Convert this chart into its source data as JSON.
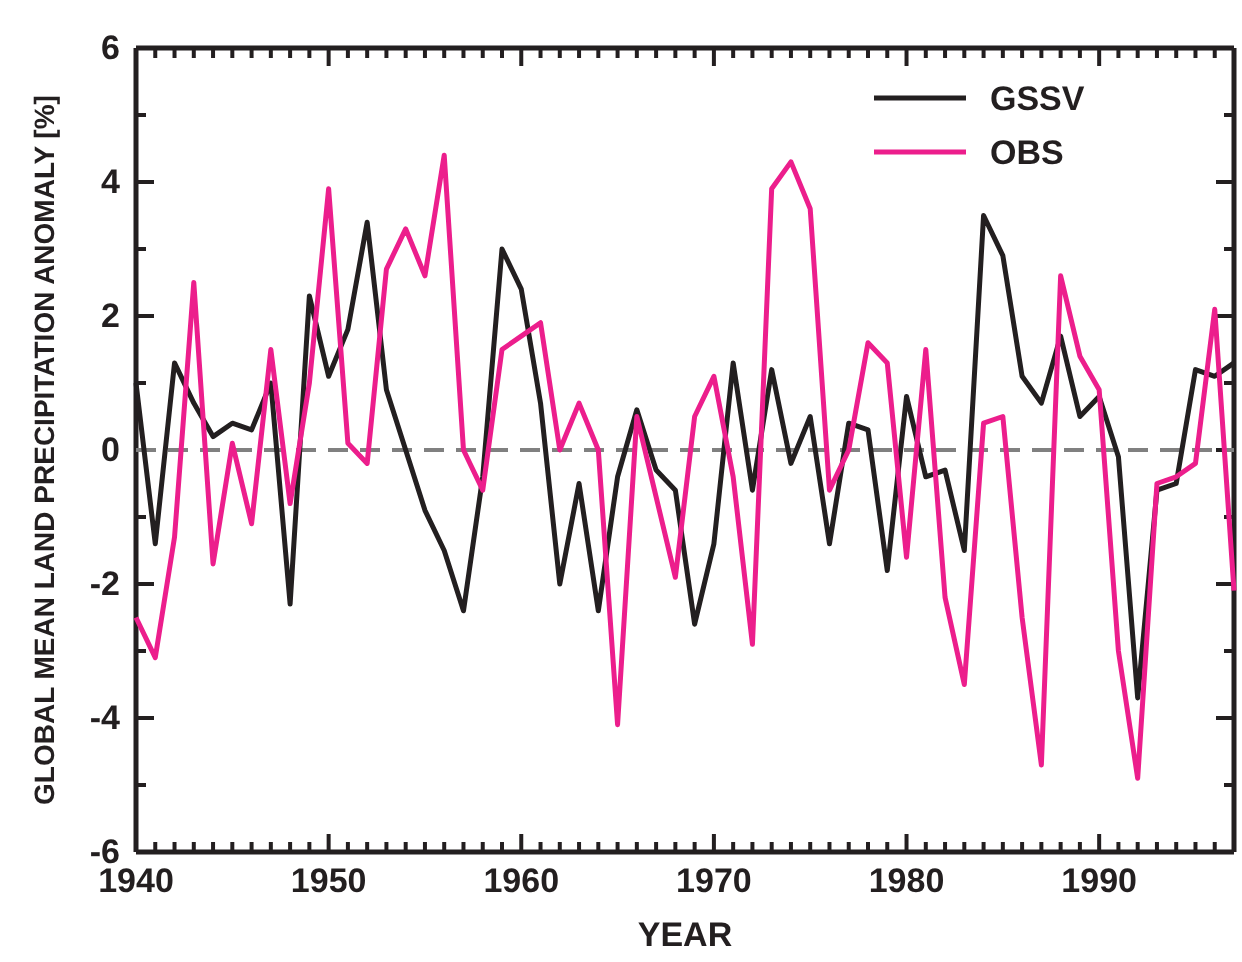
{
  "chart_data": {
    "type": "line",
    "xlabel": "YEAR",
    "ylabel": "GLOBAL MEAN LAND PRECIPITATION ANOMALY [%]",
    "x": [
      1940,
      1941,
      1942,
      1943,
      1944,
      1945,
      1946,
      1947,
      1948,
      1949,
      1950,
      1951,
      1952,
      1953,
      1954,
      1955,
      1956,
      1957,
      1958,
      1959,
      1960,
      1961,
      1962,
      1963,
      1964,
      1965,
      1966,
      1967,
      1968,
      1969,
      1970,
      1971,
      1972,
      1973,
      1974,
      1975,
      1976,
      1977,
      1978,
      1979,
      1980,
      1981,
      1982,
      1983,
      1984,
      1985,
      1986,
      1987,
      1988,
      1989,
      1990,
      1991,
      1992,
      1993,
      1994,
      1995,
      1996,
      1997
    ],
    "series": [
      {
        "name": "GSSV",
        "color": "#231f20",
        "values": [
          1.0,
          -1.4,
          1.3,
          0.7,
          0.2,
          0.4,
          0.3,
          1.0,
          -2.3,
          2.3,
          1.1,
          1.8,
          3.4,
          0.9,
          0.0,
          -0.9,
          -1.5,
          -2.4,
          -0.4,
          3.0,
          2.4,
          0.7,
          -2.0,
          -0.5,
          -2.4,
          -0.4,
          0.6,
          -0.3,
          -0.6,
          -2.6,
          -1.4,
          1.3,
          -0.6,
          1.2,
          -0.2,
          0.5,
          -1.4,
          0.4,
          0.3,
          -1.8,
          0.8,
          -0.4,
          -0.3,
          -1.5,
          3.5,
          2.9,
          1.1,
          0.7,
          1.7,
          0.5,
          0.8,
          -0.1,
          -3.7,
          -0.6,
          -0.5,
          1.2,
          1.1,
          1.3
        ]
      },
      {
        "name": "OBS",
        "color": "#ec1e8c",
        "values": [
          -2.5,
          -3.1,
          -1.3,
          2.5,
          -1.7,
          0.1,
          -1.1,
          1.5,
          -0.8,
          1.0,
          3.9,
          0.1,
          -0.2,
          2.7,
          3.3,
          2.6,
          4.4,
          0.0,
          -0.6,
          1.5,
          1.7,
          1.9,
          0.0,
          0.7,
          0.0,
          -4.1,
          0.5,
          -0.7,
          -1.9,
          0.5,
          1.1,
          -0.4,
          -2.9,
          3.9,
          4.3,
          3.6,
          -0.6,
          0.0,
          1.6,
          1.3,
          -1.6,
          1.5,
          -2.2,
          -3.5,
          0.4,
          0.5,
          -2.5,
          -4.7,
          2.6,
          1.4,
          0.9,
          -3.0,
          -4.9,
          -0.5,
          -0.4,
          -0.2,
          2.1,
          -2.1
        ]
      }
    ],
    "xlim": [
      1940,
      1997
    ],
    "xticks": [
      1940,
      {
        "value": 1941,
        "label": null
      },
      {
        "value": 1942,
        "label": null
      },
      {
        "value": 1943,
        "label": null
      },
      {
        "value": 1944,
        "label": null
      },
      {
        "value": 1945,
        "label": null
      },
      {
        "value": 1946,
        "label": null
      },
      {
        "value": 1947,
        "label": null
      },
      {
        "value": 1948,
        "label": null
      },
      {
        "value": 1949,
        "label": null
      },
      1950,
      {
        "value": 1951,
        "label": null
      },
      {
        "value": 1952,
        "label": null
      },
      {
        "value": 1953,
        "label": null
      },
      {
        "value": 1954,
        "label": null
      },
      {
        "value": 1955,
        "label": null
      },
      {
        "value": 1956,
        "label": null
      },
      {
        "value": 1957,
        "label": null
      },
      {
        "value": 1958,
        "label": null
      },
      {
        "value": 1959,
        "label": null
      },
      1960,
      {
        "value": 1961,
        "label": null
      },
      {
        "value": 1962,
        "label": null
      },
      {
        "value": 1963,
        "label": null
      },
      {
        "value": 1964,
        "label": null
      },
      {
        "value": 1965,
        "label": null
      },
      {
        "value": 1966,
        "label": null
      },
      {
        "value": 1967,
        "label": null
      },
      {
        "value": 1968,
        "label": null
      },
      {
        "value": 1969,
        "label": null
      },
      1970,
      {
        "value": 1971,
        "label": null
      },
      {
        "value": 1972,
        "label": null
      },
      {
        "value": 1973,
        "label": null
      },
      {
        "value": 1974,
        "label": null
      },
      {
        "value": 1975,
        "label": null
      },
      {
        "value": 1976,
        "label": null
      },
      {
        "value": 1977,
        "label": null
      },
      {
        "value": 1978,
        "label": null
      },
      {
        "value": 1979,
        "label": null
      },
      1980,
      {
        "value": 1981,
        "label": null
      },
      {
        "value": 1982,
        "label": null
      },
      {
        "value": 1983,
        "label": null
      },
      {
        "value": 1984,
        "label": null
      },
      {
        "value": 1985,
        "label": null
      },
      {
        "value": 1986,
        "label": null
      },
      {
        "value": 1987,
        "label": null
      },
      {
        "value": 1988,
        "label": null
      },
      {
        "value": 1989,
        "label": null
      },
      1990,
      {
        "value": 1991,
        "label": null
      },
      {
        "value": 1992,
        "label": null
      },
      {
        "value": 1993,
        "label": null
      },
      {
        "value": 1994,
        "label": null
      },
      {
        "value": 1995,
        "label": null
      },
      {
        "value": 1996,
        "label": null
      },
      {
        "value": 1997,
        "label": null
      }
    ],
    "ylim": [
      -6,
      6
    ],
    "yticks": [
      -6,
      {
        "value": -5,
        "label": null
      },
      -4,
      {
        "value": -3,
        "label": null
      },
      -2,
      {
        "value": -1,
        "label": null
      },
      0,
      {
        "value": 1,
        "label": null
      },
      2,
      {
        "value": 3,
        "label": null
      },
      4,
      {
        "value": 5,
        "label": null
      },
      6
    ],
    "ref_lines": [
      {
        "axis": "y",
        "value": 0,
        "color": "#808080",
        "line_style": "dashed"
      }
    ],
    "legend": "top right",
    "grid": false,
    "marker": "none",
    "line_style": "solid"
  }
}
